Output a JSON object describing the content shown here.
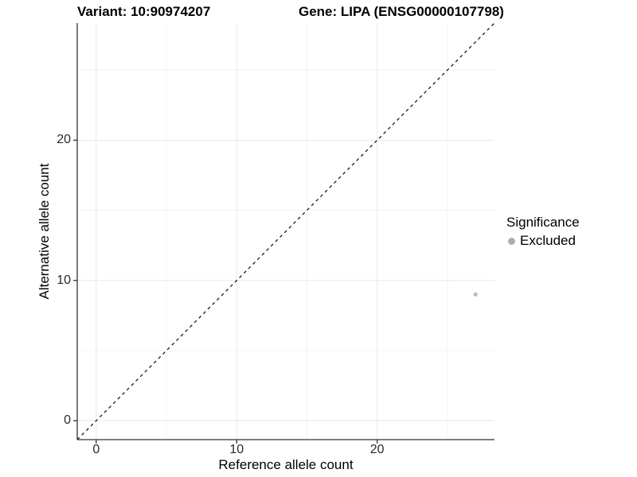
{
  "titles": {
    "variant": "Variant: 10:90974207",
    "gene": "Gene: LIPA (ENSG00000107798)"
  },
  "axes": {
    "x_label": "Reference allele count",
    "y_label": "Alternative allele count"
  },
  "legend": {
    "title": "Significance",
    "items": [
      {
        "label": "Excluded",
        "color": "#adadad"
      }
    ]
  },
  "colors": {
    "axis_line": "#333333",
    "tick_text": "#2b2b2b",
    "grid_major": "#e8e8e8",
    "grid_minor": "#f3f3f3",
    "identity_line": "#1a1a1a",
    "point": "#bdbdbd",
    "background": "#ffffff"
  },
  "chart_data": {
    "type": "scatter",
    "title": "Variant: 10:90974207   Gene: LIPA (ENSG00000107798)",
    "xlabel": "Reference allele count",
    "ylabel": "Alternative allele count",
    "xlim": [
      -1.35,
      28.35
    ],
    "ylim": [
      -1.35,
      28.35
    ],
    "x_ticks": [
      0,
      10,
      20
    ],
    "y_ticks": [
      0,
      10,
      20
    ],
    "x_minor_ticks": [
      5,
      15,
      25
    ],
    "y_minor_ticks": [
      5,
      15,
      25
    ],
    "grid": true,
    "aspect": "equal",
    "legend_position": "right",
    "series": [
      {
        "name": "Excluded",
        "color": "#bdbdbd",
        "points": [
          {
            "x": 27,
            "y": 9
          }
        ]
      }
    ],
    "reference_line": {
      "kind": "identity",
      "slope": 1,
      "intercept": 0,
      "style": "dashed",
      "color": "#1a1a1a"
    }
  }
}
